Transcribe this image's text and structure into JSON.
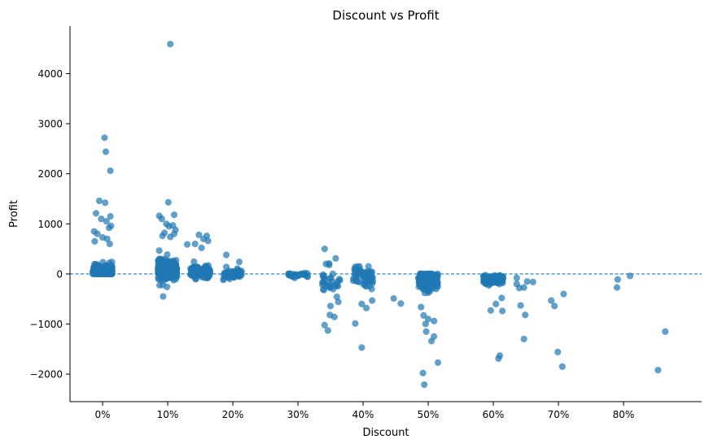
{
  "chart_data": {
    "type": "scatter",
    "title": "Discount vs Profit",
    "xlabel": "Discount",
    "ylabel": "Profit",
    "xlim": [
      -0.05,
      0.92
    ],
    "ylim": [
      -2550,
      4950
    ],
    "x_ticks": [
      0,
      0.1,
      0.2,
      0.3,
      0.4,
      0.5,
      0.6,
      0.7,
      0.8
    ],
    "x_tick_labels": [
      "0%",
      "10%",
      "20%",
      "30%",
      "40%",
      "50%",
      "60%",
      "70%",
      "80%"
    ],
    "y_ticks": [
      -2000,
      -1000,
      0,
      1000,
      2000,
      3000,
      4000
    ],
    "y_tick_labels": [
      "−2000",
      "−1000",
      "0",
      "1000",
      "2000",
      "3000",
      "4000"
    ],
    "grid": false,
    "legend": "none",
    "colors": {
      "points": "#1f77b4",
      "reference_line": "#1f77b4",
      "axis": "#000000"
    },
    "reference_line": {
      "y": 0,
      "style": "dashed"
    },
    "point_opacity": 0.7,
    "jitter": 0.015,
    "clusters": [
      {
        "x": 0.0,
        "count": 230,
        "min": 0,
        "max": 520,
        "center": 50,
        "spread": 120
      },
      {
        "x": 0.1,
        "count": 200,
        "min": -260,
        "max": 720,
        "center": 100,
        "spread": 160
      },
      {
        "x": 0.15,
        "count": 130,
        "min": -220,
        "max": 420,
        "center": 30,
        "spread": 110
      },
      {
        "x": 0.2,
        "count": 60,
        "min": -300,
        "max": 200,
        "center": -10,
        "spread": 80
      },
      {
        "x": 0.3,
        "count": 30,
        "min": -130,
        "max": 30,
        "center": -20,
        "spread": 35
      },
      {
        "x": 0.35,
        "count": 30,
        "min": -850,
        "max": 320,
        "center": -150,
        "spread": 250
      },
      {
        "x": 0.4,
        "count": 60,
        "min": -720,
        "max": 150,
        "center": -80,
        "spread": 160
      },
      {
        "x": 0.5,
        "count": 130,
        "min": -800,
        "max": 0,
        "center": -150,
        "spread": 180
      },
      {
        "x": 0.6,
        "count": 110,
        "min": -360,
        "max": 0,
        "center": -110,
        "spread": 80
      }
    ],
    "points": [
      {
        "x": 0.003,
        "y": 2720
      },
      {
        "x": 0.005,
        "y": 2440
      },
      {
        "x": 0.012,
        "y": 2060
      },
      {
        "x": -0.005,
        "y": 1460
      },
      {
        "x": 0.004,
        "y": 1420
      },
      {
        "x": -0.01,
        "y": 1210
      },
      {
        "x": 0.012,
        "y": 1150
      },
      {
        "x": -0.002,
        "y": 1100
      },
      {
        "x": 0.006,
        "y": 1050
      },
      {
        "x": 0.013,
        "y": 960
      },
      {
        "x": 0.01,
        "y": 920
      },
      {
        "x": -0.013,
        "y": 850
      },
      {
        "x": -0.008,
        "y": 800
      },
      {
        "x": 0.0,
        "y": 730
      },
      {
        "x": 0.007,
        "y": 700
      },
      {
        "x": -0.012,
        "y": 650
      },
      {
        "x": 0.011,
        "y": 600
      },
      {
        "x": 0.104,
        "y": 4590
      },
      {
        "x": 0.101,
        "y": 1430
      },
      {
        "x": 0.087,
        "y": 1160
      },
      {
        "x": 0.091,
        "y": 1100
      },
      {
        "x": 0.11,
        "y": 1180
      },
      {
        "x": 0.098,
        "y": 1000
      },
      {
        "x": 0.102,
        "y": 950
      },
      {
        "x": 0.108,
        "y": 970
      },
      {
        "x": 0.112,
        "y": 880
      },
      {
        "x": 0.095,
        "y": 820
      },
      {
        "x": 0.11,
        "y": 800
      },
      {
        "x": 0.104,
        "y": 740
      },
      {
        "x": 0.092,
        "y": 760
      },
      {
        "x": 0.093,
        "y": -450
      },
      {
        "x": 0.099,
        "y": -260
      },
      {
        "x": 0.13,
        "y": 590
      },
      {
        "x": 0.148,
        "y": 780
      },
      {
        "x": 0.16,
        "y": 760
      },
      {
        "x": 0.155,
        "y": 700
      },
      {
        "x": 0.162,
        "y": 660
      },
      {
        "x": 0.142,
        "y": 600
      },
      {
        "x": 0.152,
        "y": 520
      },
      {
        "x": 0.19,
        "y": 380
      },
      {
        "x": 0.19,
        "y": 140
      },
      {
        "x": 0.21,
        "y": 240
      },
      {
        "x": 0.341,
        "y": 500
      },
      {
        "x": 0.343,
        "y": 200
      },
      {
        "x": 0.348,
        "y": 180
      },
      {
        "x": 0.358,
        "y": 310
      },
      {
        "x": 0.341,
        "y": -1020
      },
      {
        "x": 0.346,
        "y": -1130
      },
      {
        "x": 0.349,
        "y": -820
      },
      {
        "x": 0.356,
        "y": -860
      },
      {
        "x": 0.35,
        "y": -640
      },
      {
        "x": 0.362,
        "y": -560
      },
      {
        "x": 0.388,
        "y": 140
      },
      {
        "x": 0.388,
        "y": -990
      },
      {
        "x": 0.398,
        "y": -1470
      },
      {
        "x": 0.405,
        "y": -680
      },
      {
        "x": 0.398,
        "y": -600
      },
      {
        "x": 0.414,
        "y": -530
      },
      {
        "x": 0.447,
        "y": -490
      },
      {
        "x": 0.458,
        "y": -590
      },
      {
        "x": 0.492,
        "y": -1980
      },
      {
        "x": 0.494,
        "y": -2210
      },
      {
        "x": 0.497,
        "y": -1150
      },
      {
        "x": 0.505,
        "y": -1340
      },
      {
        "x": 0.509,
        "y": -1250
      },
      {
        "x": 0.515,
        "y": -1770
      },
      {
        "x": 0.496,
        "y": -1000
      },
      {
        "x": 0.5,
        "y": -900
      },
      {
        "x": 0.493,
        "y": -830
      },
      {
        "x": 0.509,
        "y": -940
      },
      {
        "x": 0.489,
        "y": -660
      },
      {
        "x": 0.608,
        "y": -1690
      },
      {
        "x": 0.61,
        "y": -1630
      },
      {
        "x": 0.596,
        "y": -730
      },
      {
        "x": 0.614,
        "y": -740
      },
      {
        "x": 0.604,
        "y": -600
      },
      {
        "x": 0.613,
        "y": -480
      },
      {
        "x": 0.636,
        "y": -80
      },
      {
        "x": 0.636,
        "y": -200
      },
      {
        "x": 0.64,
        "y": -280
      },
      {
        "x": 0.647,
        "y": -270
      },
      {
        "x": 0.652,
        "y": -150
      },
      {
        "x": 0.661,
        "y": -160
      },
      {
        "x": 0.642,
        "y": -630
      },
      {
        "x": 0.649,
        "y": -820
      },
      {
        "x": 0.647,
        "y": -1300
      },
      {
        "x": 0.689,
        "y": -530
      },
      {
        "x": 0.694,
        "y": -640
      },
      {
        "x": 0.708,
        "y": -400
      },
      {
        "x": 0.699,
        "y": -1560
      },
      {
        "x": 0.706,
        "y": -1850
      },
      {
        "x": 0.791,
        "y": -110
      },
      {
        "x": 0.79,
        "y": -270
      },
      {
        "x": 0.81,
        "y": -40
      },
      {
        "x": 0.853,
        "y": -1920
      },
      {
        "x": 0.864,
        "y": -1150
      }
    ]
  }
}
